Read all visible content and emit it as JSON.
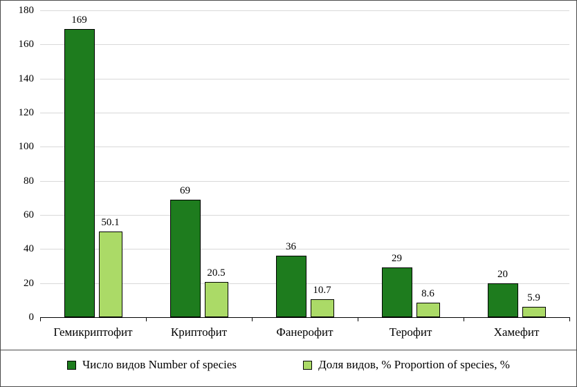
{
  "chart_data": {
    "type": "bar",
    "categories": [
      "Гемикриптофит",
      "Криптофит",
      "Фанерофит",
      "Терофит",
      "Хамефит"
    ],
    "series": [
      {
        "name": "Число видов Number of species",
        "color": "#1e7c1e",
        "values": [
          169,
          69,
          36,
          29,
          20
        ]
      },
      {
        "name": "Доля видов, % Proportion of species, %",
        "color": "#abda67",
        "values": [
          50.1,
          20.5,
          10.7,
          8.6,
          5.9
        ]
      }
    ],
    "title": "",
    "xlabel": "",
    "ylabel": "",
    "ylim": [
      0,
      180
    ],
    "ytick_step": 20,
    "grid": true,
    "legend_position": "bottom"
  },
  "colors": {
    "series_count": "#1e7c1e",
    "series_proportion": "#abda67",
    "bar_border": "#000000",
    "gridline": "#d8d8d8",
    "axis": "#000000",
    "frame_border": "#4a4a4a"
  },
  "legend": {
    "items": [
      {
        "label": "Число видов Number of species",
        "color": "#1e7c1e"
      },
      {
        "label": "Доля видов, % Proportion of species, %",
        "color": "#abda67"
      }
    ]
  }
}
